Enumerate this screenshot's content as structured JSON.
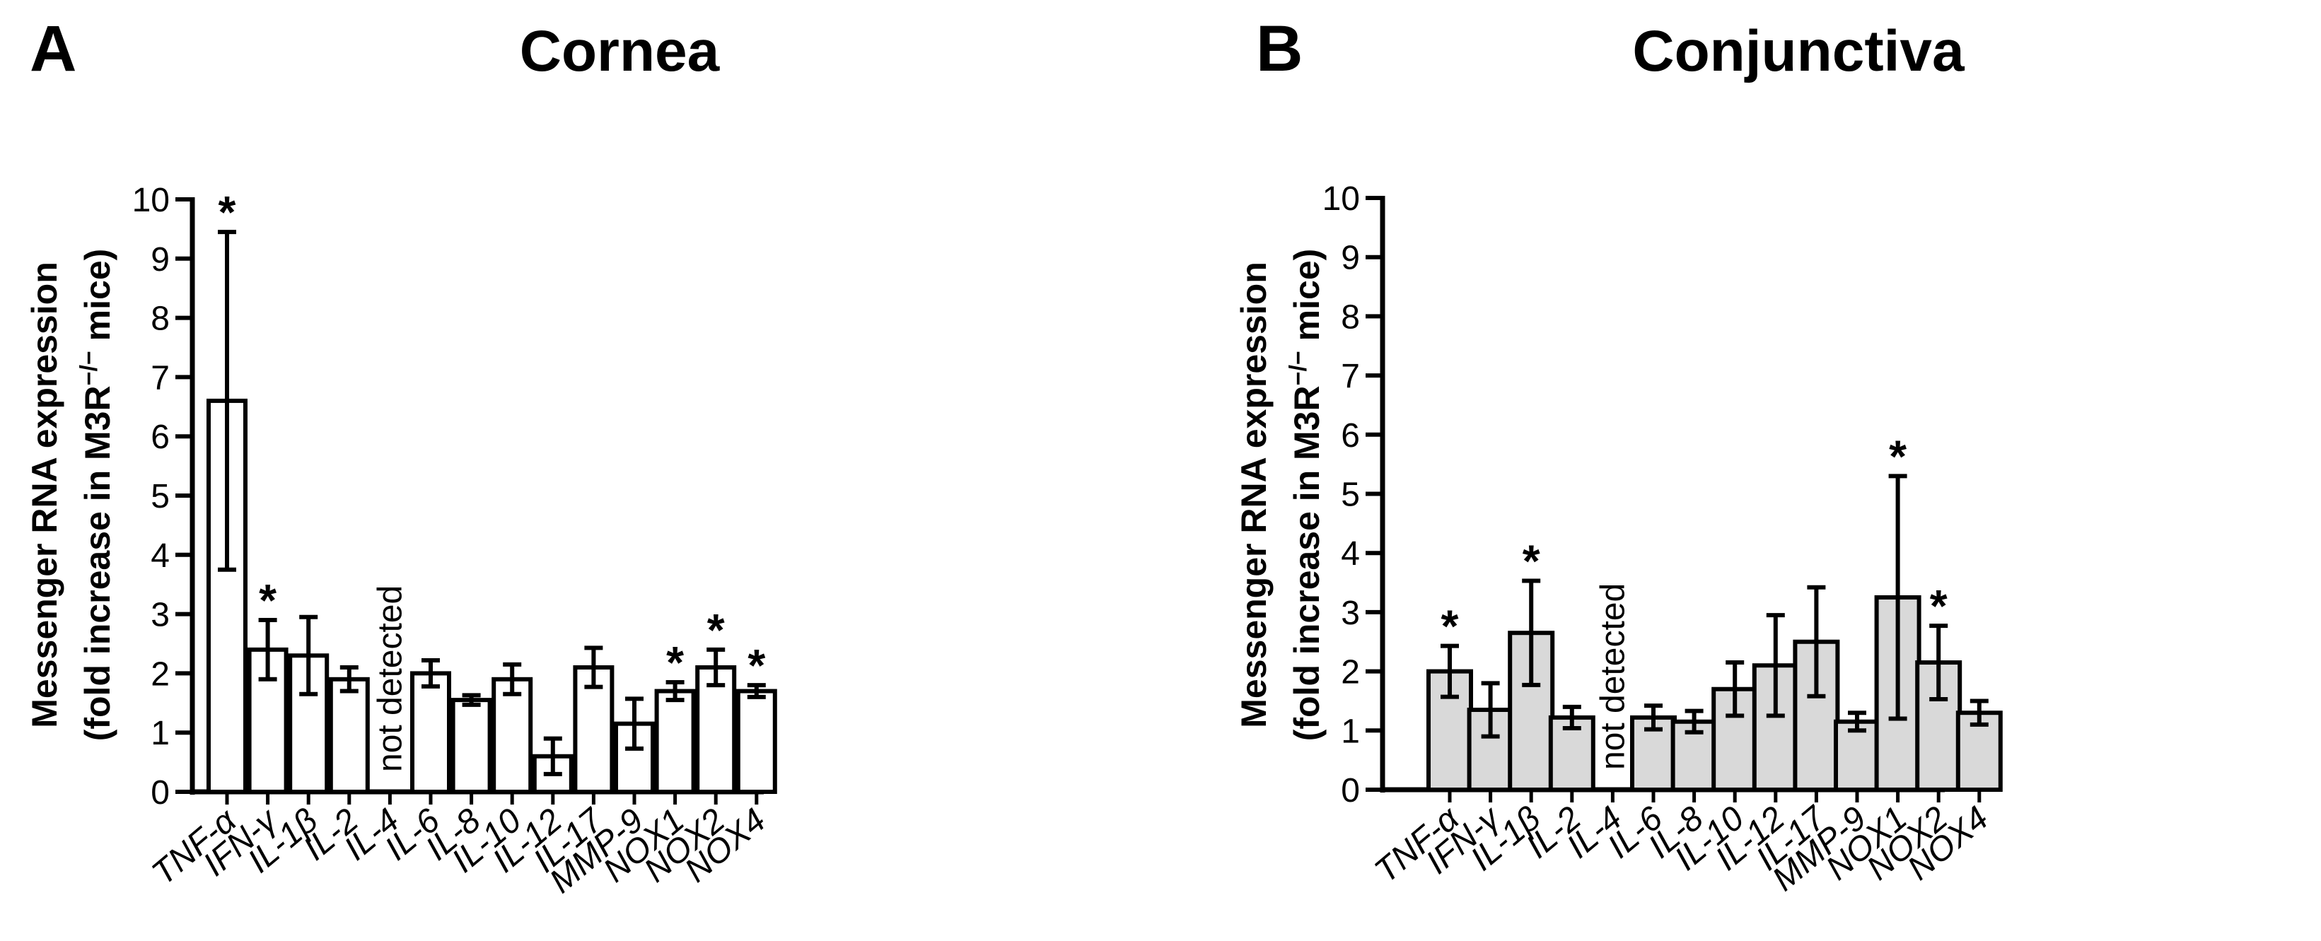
{
  "figure": {
    "panels": [
      {
        "letter": "A",
        "title": "Cornea"
      },
      {
        "letter": "B",
        "title": "Conjunctiva"
      }
    ]
  },
  "chart_data": [
    {
      "type": "bar",
      "panel": "A",
      "title": "Cornea",
      "ylabel_line1": "Messenger RNA expression",
      "ylabel_line2_prefix": "(fold increase in M3R",
      "ylabel_line2_sup": "−/−",
      "ylabel_line2_suffix": " mice)",
      "ylim": [
        0,
        10
      ],
      "yticks": [
        "0",
        "1",
        "2",
        "3",
        "4",
        "5",
        "6",
        "7",
        "8",
        "9",
        "10"
      ],
      "bar_color": "#ffffff",
      "categories": [
        "TNF-α",
        "IFN-γ",
        "IL-1β",
        "IL-2",
        "IL-4",
        "IL-6",
        "IL-8",
        "IL-10",
        "IL-12",
        "IL-17",
        "MMP-9",
        "NOX1",
        "NOX2",
        "NOX4"
      ],
      "values": [
        6.6,
        2.4,
        2.3,
        1.9,
        null,
        2.0,
        1.55,
        1.9,
        0.6,
        2.1,
        1.15,
        1.7,
        2.1,
        1.7
      ],
      "errors": [
        2.85,
        0.5,
        0.65,
        0.2,
        null,
        0.22,
        0.08,
        0.25,
        0.3,
        0.33,
        0.42,
        0.15,
        0.3,
        0.1
      ],
      "significant": [
        true,
        true,
        false,
        false,
        false,
        false,
        false,
        false,
        false,
        false,
        false,
        true,
        true,
        true
      ],
      "significance_mark": "*",
      "annotations": [
        {
          "category_index": 4,
          "text": "not detected"
        }
      ]
    },
    {
      "type": "bar",
      "panel": "B",
      "title": "Conjunctiva",
      "ylabel_line1": "Messenger RNA expression",
      "ylabel_line2_prefix": "(fold increase in M3R",
      "ylabel_line2_sup": "−/−",
      "ylabel_line2_suffix": " mice)",
      "ylim": [
        0,
        10
      ],
      "yticks": [
        "0",
        "1",
        "2",
        "3",
        "4",
        "5",
        "6",
        "7",
        "8",
        "9",
        "10"
      ],
      "bar_color": "#d9d9d9",
      "categories": [
        "TNF-α",
        "IFN-γ",
        "IL-1β",
        "IL-2",
        "IL-4",
        "IL-6",
        "IL-8",
        "IL-10",
        "IL-12",
        "IL-17",
        "MMP-9",
        "NOX1",
        "NOX2",
        "NOX4"
      ],
      "values": [
        2.0,
        1.35,
        2.65,
        1.22,
        null,
        1.22,
        1.15,
        1.7,
        2.1,
        2.5,
        1.15,
        3.25,
        2.15,
        1.3
      ],
      "errors": [
        0.43,
        0.45,
        0.88,
        0.18,
        null,
        0.2,
        0.18,
        0.45,
        0.85,
        0.92,
        0.15,
        2.05,
        0.62,
        0.2
      ],
      "significant": [
        true,
        false,
        true,
        false,
        false,
        false,
        false,
        false,
        false,
        false,
        false,
        true,
        true,
        false
      ],
      "significance_mark": "*",
      "annotations": [
        {
          "category_index": 4,
          "text": "not detected"
        }
      ]
    }
  ]
}
